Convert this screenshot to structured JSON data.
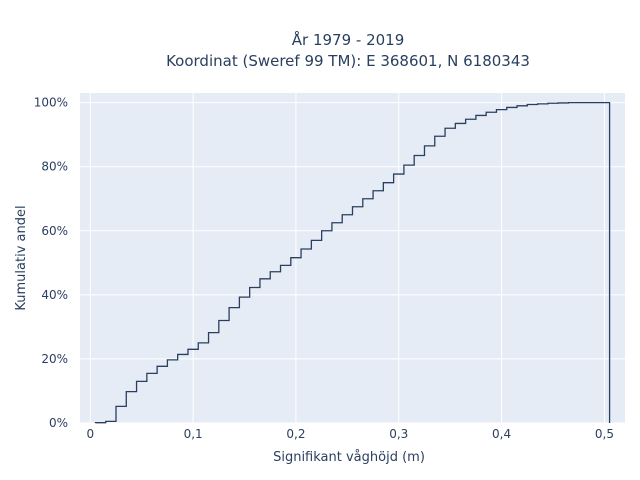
{
  "chart_data": {
    "type": "line",
    "subtype": "cumulative step histogram",
    "title_lines": [
      "År 1979 - 2019",
      "Koordinat (Sweref 99 TM): E 368601, N 6180343"
    ],
    "xlabel": "Signifikant våghöjd (m)",
    "ylabel": "Kumulativ andel",
    "xlim": [
      -0.01,
      0.52
    ],
    "ylim": [
      0,
      1.03
    ],
    "x_ticks": [
      0,
      0.1,
      0.2,
      0.3,
      0.4,
      0.5
    ],
    "x_tick_labels": [
      "0",
      "0,1",
      "0,2",
      "0,3",
      "0,4",
      "0,5"
    ],
    "y_ticks": [
      0,
      0.2,
      0.4,
      0.6,
      0.8,
      1.0
    ],
    "y_tick_labels": [
      "0%",
      "20%",
      "40%",
      "60%",
      "80%",
      "100%"
    ],
    "grid": true,
    "legend": "none",
    "colors": {
      "line": "#2a3f5f",
      "plot_bg": "#e5ecf6",
      "grid": "#ffffff",
      "text": "#2a3f5f"
    },
    "bin_width": 0.01,
    "series": [
      {
        "x": [
          0.01,
          0.02,
          0.03,
          0.04,
          0.05,
          0.06,
          0.07,
          0.08,
          0.09,
          0.1,
          0.11,
          0.12,
          0.13,
          0.14,
          0.15,
          0.16,
          0.17,
          0.18,
          0.19,
          0.2,
          0.21,
          0.22,
          0.23,
          0.24,
          0.25,
          0.26,
          0.27,
          0.28,
          0.29,
          0.3,
          0.31,
          0.32,
          0.33,
          0.34,
          0.35,
          0.36,
          0.37,
          0.38,
          0.39,
          0.4,
          0.41,
          0.42,
          0.43,
          0.44,
          0.45,
          0.46,
          0.47,
          0.48,
          0.49,
          0.5
        ],
        "y": [
          0.001,
          0.005,
          0.052,
          0.098,
          0.13,
          0.155,
          0.177,
          0.197,
          0.214,
          0.23,
          0.25,
          0.282,
          0.32,
          0.36,
          0.393,
          0.423,
          0.45,
          0.472,
          0.492,
          0.516,
          0.543,
          0.57,
          0.6,
          0.625,
          0.65,
          0.675,
          0.7,
          0.725,
          0.75,
          0.777,
          0.805,
          0.835,
          0.865,
          0.895,
          0.92,
          0.935,
          0.948,
          0.96,
          0.97,
          0.978,
          0.985,
          0.99,
          0.994,
          0.996,
          0.998,
          0.999,
          1.0,
          1.0,
          1.0,
          1.0
        ]
      }
    ]
  }
}
